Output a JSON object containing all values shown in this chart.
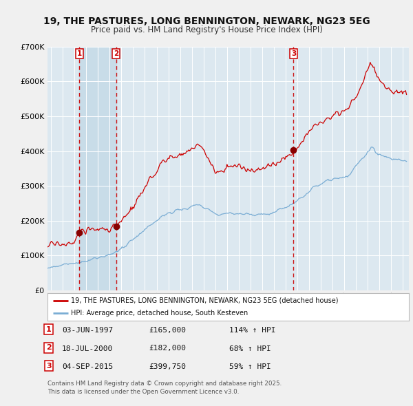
{
  "title": "19, THE PASTURES, LONG BENNINGTON, NEWARK, NG23 5EG",
  "subtitle": "Price paid vs. HM Land Registry's House Price Index (HPI)",
  "legend_line1": "19, THE PASTURES, LONG BENNINGTON, NEWARK, NG23 5EG (detached house)",
  "legend_line2": "HPI: Average price, detached house, South Kesteven",
  "footer": "Contains HM Land Registry data © Crown copyright and database right 2025.\nThis data is licensed under the Open Government Licence v3.0.",
  "transactions": [
    {
      "num": 1,
      "date": "03-JUN-1997",
      "price": 165000,
      "pct": "114%",
      "year": 1997.42
    },
    {
      "num": 2,
      "date": "18-JUL-2000",
      "price": 182000,
      "pct": "68%",
      "year": 2000.54
    },
    {
      "num": 3,
      "date": "04-SEP-2015",
      "price": 399750,
      "pct": "59%",
      "year": 2015.67
    }
  ],
  "red_line_color": "#cc0000",
  "blue_line_color": "#7aadd4",
  "plot_bg_color": "#dce8f0",
  "fig_bg_color": "#f0f0f0",
  "dashed_line_color": "#cc0000",
  "span_color": "#c8dce8",
  "ylim": [
    0,
    700000
  ],
  "xlim": [
    1994.7,
    2025.5
  ],
  "yticks": [
    0,
    100000,
    200000,
    300000,
    400000,
    500000,
    600000,
    700000
  ],
  "xticks": [
    1995,
    1996,
    1997,
    1998,
    1999,
    2000,
    2001,
    2002,
    2003,
    2004,
    2005,
    2006,
    2007,
    2008,
    2009,
    2010,
    2011,
    2012,
    2013,
    2014,
    2015,
    2016,
    2017,
    2018,
    2019,
    2020,
    2021,
    2022,
    2023,
    2024,
    2025
  ],
  "red_breakpoints": [
    [
      1994.7,
      128000
    ],
    [
      1995.0,
      130000
    ],
    [
      1995.5,
      132000
    ],
    [
      1996.0,
      133000
    ],
    [
      1996.5,
      135000
    ],
    [
      1997.0,
      140000
    ],
    [
      1997.42,
      165000
    ],
    [
      1997.8,
      172000
    ],
    [
      1998.5,
      175000
    ],
    [
      1999.0,
      175000
    ],
    [
      1999.5,
      177000
    ],
    [
      2000.0,
      179000
    ],
    [
      2000.54,
      182000
    ],
    [
      2001.0,
      195000
    ],
    [
      2001.5,
      218000
    ],
    [
      2002.0,
      240000
    ],
    [
      2002.5,
      265000
    ],
    [
      2003.0,
      290000
    ],
    [
      2003.5,
      320000
    ],
    [
      2004.0,
      345000
    ],
    [
      2004.5,
      370000
    ],
    [
      2005.0,
      375000
    ],
    [
      2005.5,
      385000
    ],
    [
      2006.0,
      390000
    ],
    [
      2006.5,
      400000
    ],
    [
      2007.0,
      405000
    ],
    [
      2007.5,
      415000
    ],
    [
      2007.8,
      410000
    ],
    [
      2008.3,
      385000
    ],
    [
      2008.8,
      355000
    ],
    [
      2009.0,
      335000
    ],
    [
      2009.5,
      345000
    ],
    [
      2010.0,
      355000
    ],
    [
      2010.5,
      360000
    ],
    [
      2011.0,
      355000
    ],
    [
      2011.5,
      348000
    ],
    [
      2012.0,
      342000
    ],
    [
      2012.5,
      345000
    ],
    [
      2013.0,
      350000
    ],
    [
      2013.5,
      355000
    ],
    [
      2014.0,
      362000
    ],
    [
      2014.5,
      370000
    ],
    [
      2015.0,
      380000
    ],
    [
      2015.5,
      392000
    ],
    [
      2015.67,
      399750
    ],
    [
      2016.0,
      415000
    ],
    [
      2016.5,
      435000
    ],
    [
      2017.0,
      455000
    ],
    [
      2017.5,
      472000
    ],
    [
      2018.0,
      488000
    ],
    [
      2018.5,
      498000
    ],
    [
      2019.0,
      505000
    ],
    [
      2019.5,
      512000
    ],
    [
      2020.0,
      515000
    ],
    [
      2020.5,
      530000
    ],
    [
      2021.0,
      555000
    ],
    [
      2021.3,
      580000
    ],
    [
      2021.7,
      610000
    ],
    [
      2022.0,
      630000
    ],
    [
      2022.2,
      655000
    ],
    [
      2022.5,
      640000
    ],
    [
      2022.8,
      620000
    ],
    [
      2023.0,
      600000
    ],
    [
      2023.5,
      585000
    ],
    [
      2024.0,
      575000
    ],
    [
      2024.5,
      572000
    ],
    [
      2025.0,
      570000
    ]
  ],
  "blue_breakpoints": [
    [
      1994.7,
      65000
    ],
    [
      1995.0,
      67000
    ],
    [
      1995.5,
      69000
    ],
    [
      1996.0,
      72000
    ],
    [
      1996.5,
      74000
    ],
    [
      1997.0,
      77000
    ],
    [
      1997.5,
      80000
    ],
    [
      1998.0,
      84000
    ],
    [
      1998.5,
      88000
    ],
    [
      1999.0,
      93000
    ],
    [
      1999.5,
      98000
    ],
    [
      2000.0,
      104000
    ],
    [
      2000.5,
      110000
    ],
    [
      2001.0,
      118000
    ],
    [
      2001.5,
      130000
    ],
    [
      2002.0,
      145000
    ],
    [
      2002.5,
      160000
    ],
    [
      2003.0,
      175000
    ],
    [
      2003.5,
      188000
    ],
    [
      2004.0,
      200000
    ],
    [
      2004.5,
      212000
    ],
    [
      2005.0,
      220000
    ],
    [
      2005.5,
      228000
    ],
    [
      2006.0,
      232000
    ],
    [
      2006.5,
      236000
    ],
    [
      2007.0,
      240000
    ],
    [
      2007.3,
      245000
    ],
    [
      2007.8,
      243000
    ],
    [
      2008.3,
      235000
    ],
    [
      2008.8,
      222000
    ],
    [
      2009.3,
      215000
    ],
    [
      2009.8,
      218000
    ],
    [
      2010.3,
      220000
    ],
    [
      2010.8,
      222000
    ],
    [
      2011.3,
      220000
    ],
    [
      2011.8,
      218000
    ],
    [
      2012.3,
      216000
    ],
    [
      2012.8,
      217000
    ],
    [
      2013.3,
      219000
    ],
    [
      2013.8,
      222000
    ],
    [
      2014.3,
      228000
    ],
    [
      2014.8,
      235000
    ],
    [
      2015.3,
      242000
    ],
    [
      2015.8,
      252000
    ],
    [
      2016.3,
      265000
    ],
    [
      2016.8,
      278000
    ],
    [
      2017.3,
      290000
    ],
    [
      2017.8,
      302000
    ],
    [
      2018.3,
      312000
    ],
    [
      2018.8,
      318000
    ],
    [
      2019.3,
      322000
    ],
    [
      2019.8,
      325000
    ],
    [
      2020.3,
      330000
    ],
    [
      2020.8,
      348000
    ],
    [
      2021.3,
      368000
    ],
    [
      2021.8,
      388000
    ],
    [
      2022.0,
      398000
    ],
    [
      2022.3,
      408000
    ],
    [
      2022.6,
      400000
    ],
    [
      2022.9,
      392000
    ],
    [
      2023.3,
      385000
    ],
    [
      2023.7,
      382000
    ],
    [
      2024.0,
      380000
    ],
    [
      2024.5,
      378000
    ],
    [
      2025.0,
      375000
    ]
  ]
}
